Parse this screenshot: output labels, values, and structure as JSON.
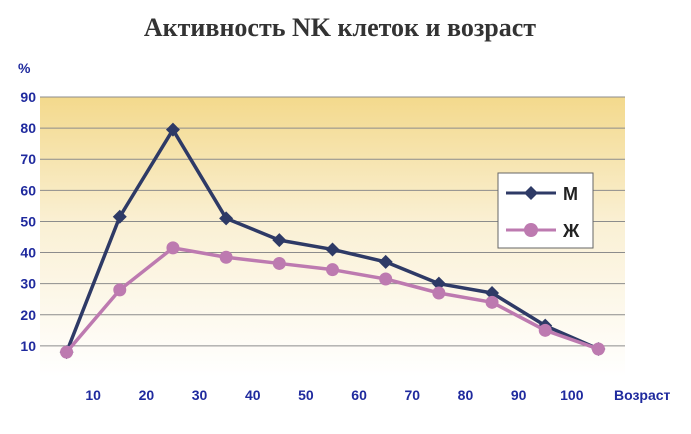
{
  "chart_data": {
    "type": "line",
    "title": "Активность NK клеток и возраст",
    "ylabel": "%",
    "xlabel": "Возраст",
    "x": [
      5,
      15,
      25,
      35,
      45,
      55,
      65,
      75,
      85,
      95,
      105
    ],
    "x_ticks": [
      "10",
      "20",
      "30",
      "40",
      "50",
      "60",
      "70",
      "80",
      "90",
      "100"
    ],
    "y_ticks": [
      "10",
      "20",
      "30",
      "40",
      "50",
      "60",
      "70",
      "80",
      "90"
    ],
    "xlim": [
      0,
      110
    ],
    "ylim": [
      0,
      90
    ],
    "grid": true,
    "legend": "right",
    "series": [
      {
        "name": "М",
        "color": "#2e3a66",
        "marker": "diamond",
        "values": [
          8,
          51.5,
          79.5,
          51,
          44,
          41,
          37,
          30,
          27,
          16.5,
          9
        ]
      },
      {
        "name": "Ж",
        "color": "#bd7ab0",
        "marker": "circle",
        "values": [
          8,
          28,
          41.5,
          38.5,
          36.5,
          34.5,
          31.5,
          27,
          24,
          15,
          9
        ]
      }
    ]
  }
}
